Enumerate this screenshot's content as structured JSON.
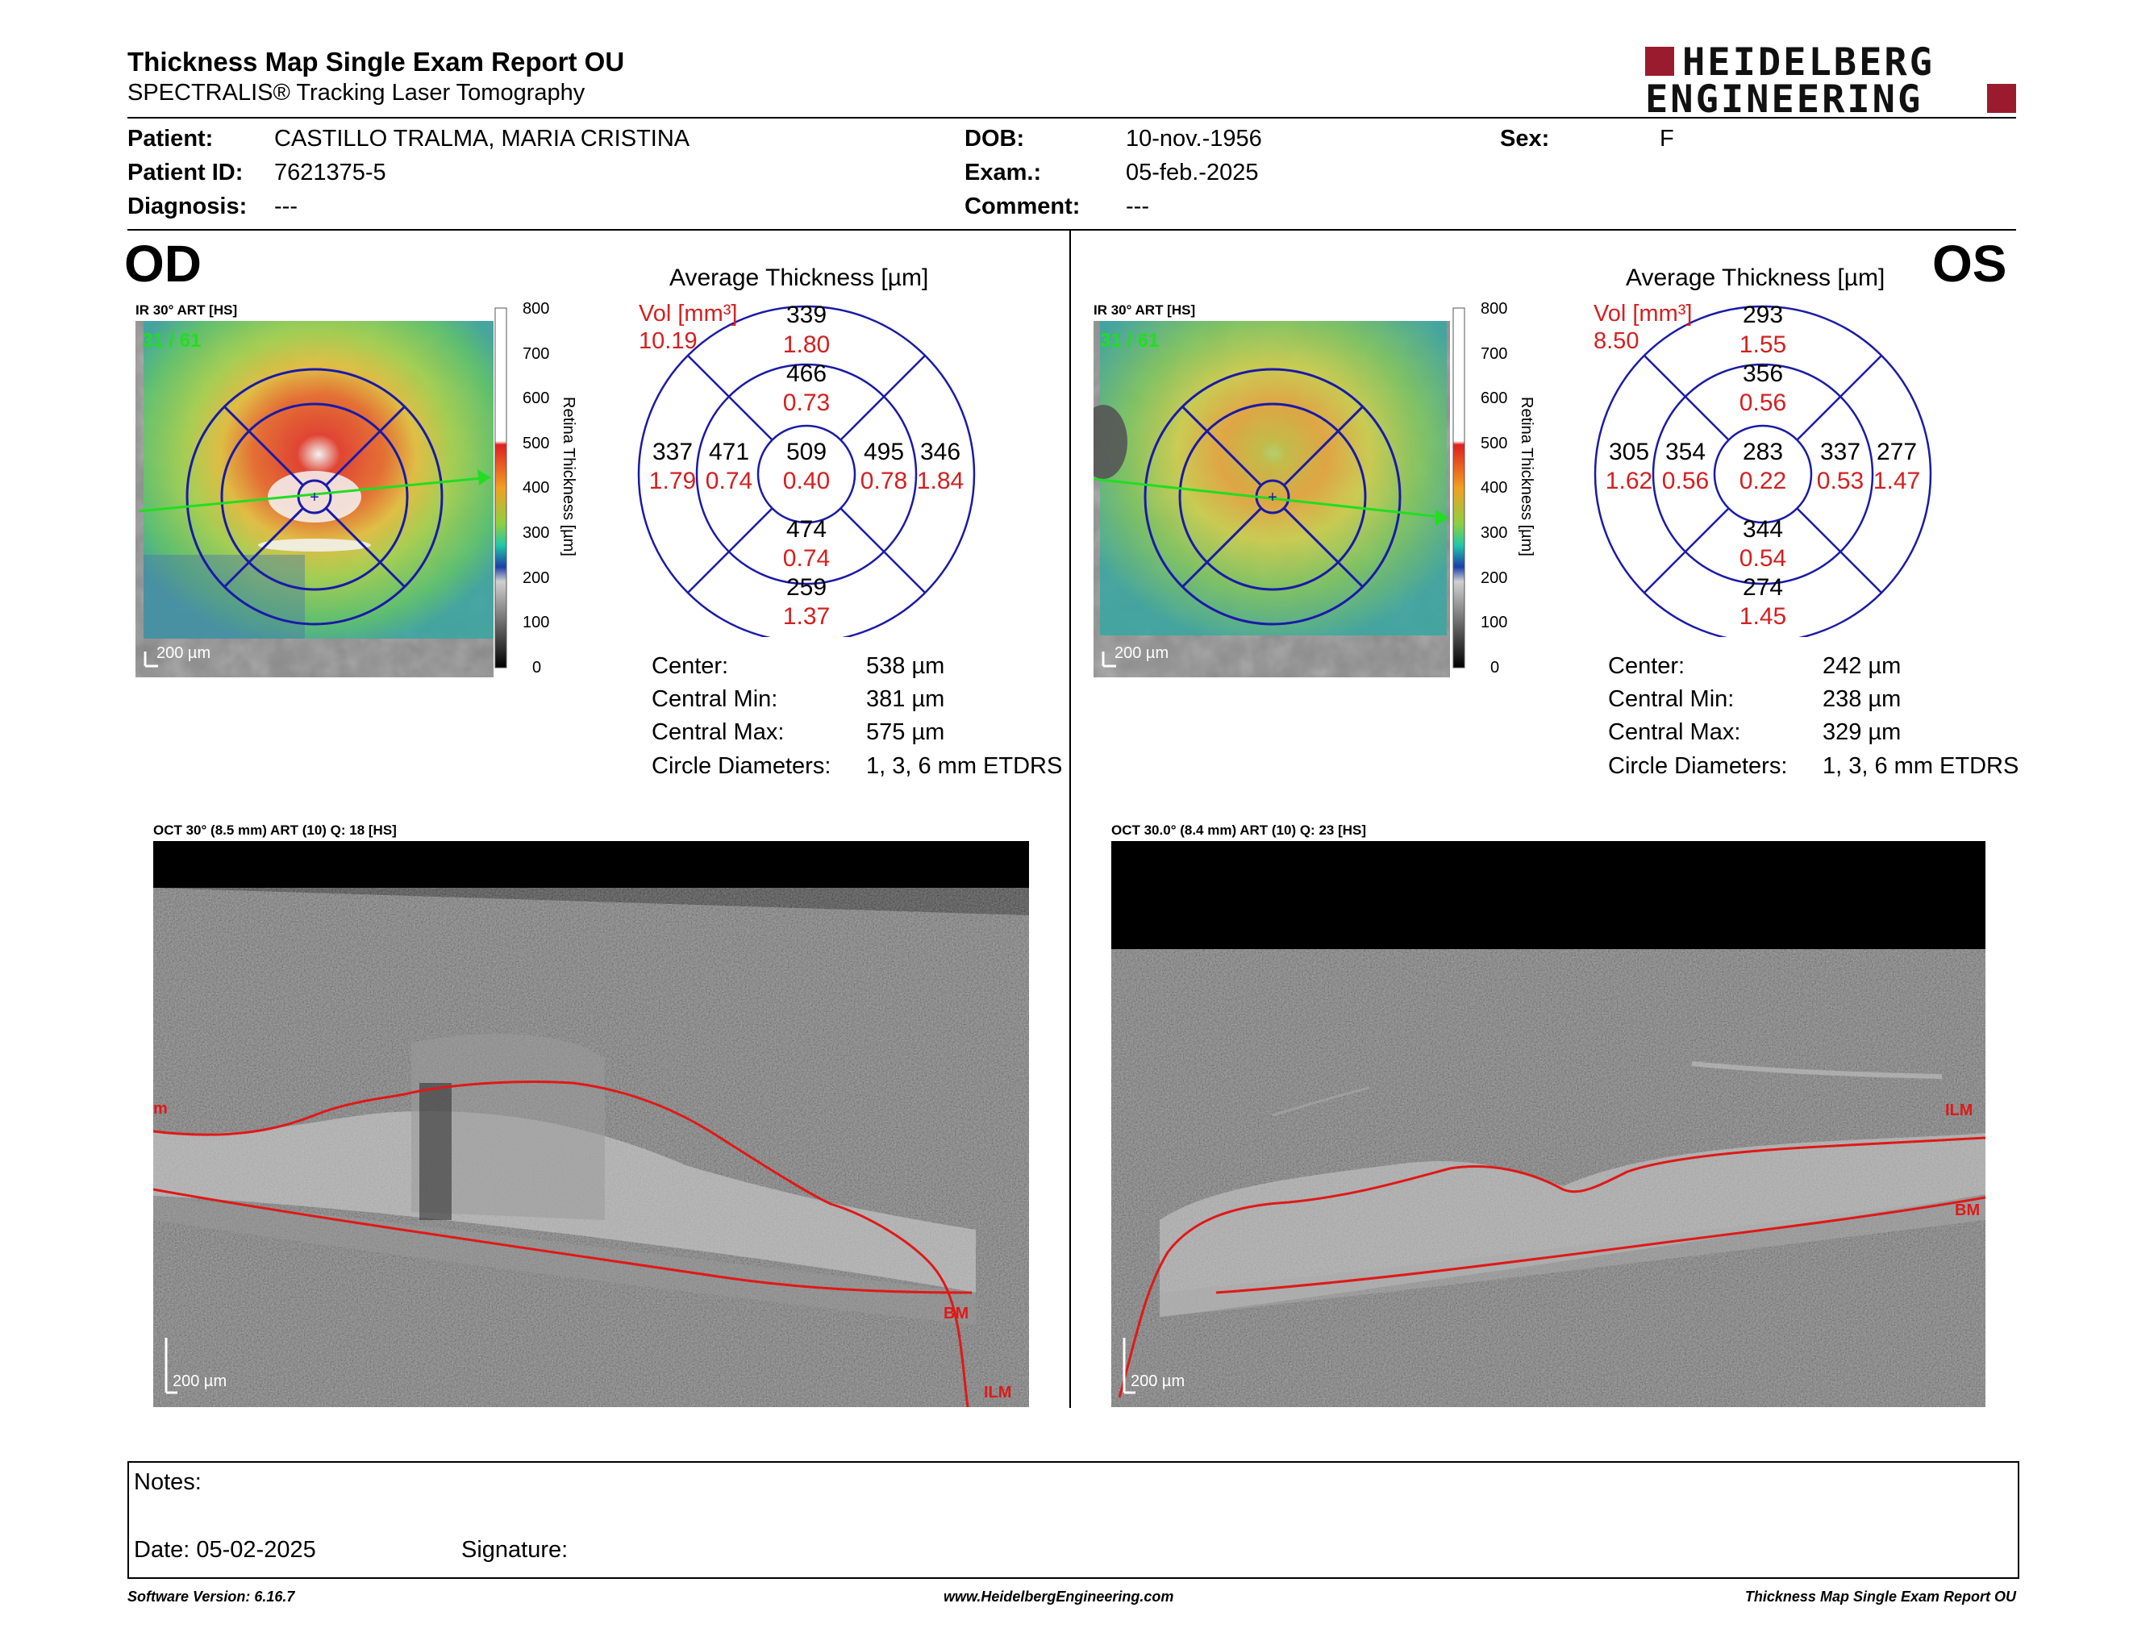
{
  "header": {
    "title": "Thickness Map Single Exam Report OU",
    "subtitle": "SPECTRALIS® Tracking Laser Tomography",
    "brand_line1": "HEIDELBERG",
    "brand_line2": "ENGINEERING",
    "brand_color": "#9b1b2e"
  },
  "patient": {
    "patient_label": "Patient:",
    "patient_value": "CASTILLO TRALMA, MARIA CRISTINA",
    "id_label": "Patient ID:",
    "id_value": "7621375-5",
    "diagnosis_label": "Diagnosis:",
    "diagnosis_value": "---",
    "dob_label": "DOB:",
    "dob_value": "10-nov.-1956",
    "exam_label": "Exam.:",
    "exam_value": "05-feb.-2025",
    "comment_label": "Comment:",
    "comment_value": "---",
    "sex_label": "Sex:",
    "sex_value": "F"
  },
  "colorbar": {
    "ticks": [
      "800",
      "700",
      "600",
      "500",
      "400",
      "300",
      "200",
      "100",
      "0"
    ],
    "label": "Retina  Thickness [µm]"
  },
  "od": {
    "eye": "OD",
    "ir_title": "IR 30° ART [HS]",
    "frame": "31 / 61",
    "scale": "200 µm",
    "avg_title": "Average Thickness [µm]",
    "vol_label": "Vol [mm³]",
    "vol_value": "10.19",
    "etdrs": {
      "center": {
        "t": "509",
        "v": "0.40"
      },
      "inner_superior": {
        "t": "466",
        "v": "0.73"
      },
      "inner_inferior": {
        "t": "474",
        "v": "0.74"
      },
      "inner_left": {
        "t": "471",
        "v": "0.74"
      },
      "inner_right": {
        "t": "495",
        "v": "0.78"
      },
      "outer_superior": {
        "t": "339",
        "v": "1.80"
      },
      "outer_inferior": {
        "t": "259",
        "v": "1.37"
      },
      "outer_left": {
        "t": "337",
        "v": "1.79"
      },
      "outer_right": {
        "t": "346",
        "v": "1.84"
      }
    },
    "stats": {
      "center_label": "Center:",
      "center_value": "538 µm",
      "cmin_label": "Central Min:",
      "cmin_value": "381 µm",
      "cmax_label": "Central Max:",
      "cmax_value": "575 µm",
      "circ_label": "Circle Diameters:",
      "circ_value": "1, 3, 6 mm ETDRS"
    },
    "oct_title": "OCT 30° (8.5 mm) ART (10) Q: 18 [HS]",
    "oct_scale": "200 µm",
    "ilm_label": "ILM",
    "ilm_label_left": "m",
    "bm_label": "BM"
  },
  "os": {
    "eye": "OS",
    "ir_title": "IR 30° ART [HS]",
    "frame": "31 / 61",
    "scale": "200 µm",
    "avg_title": "Average Thickness [µm]",
    "vol_label": "Vol [mm³]",
    "vol_value": "8.50",
    "etdrs": {
      "center": {
        "t": "283",
        "v": "0.22"
      },
      "inner_superior": {
        "t": "356",
        "v": "0.56"
      },
      "inner_inferior": {
        "t": "344",
        "v": "0.54"
      },
      "inner_left": {
        "t": "354",
        "v": "0.56"
      },
      "inner_right": {
        "t": "337",
        "v": "0.53"
      },
      "outer_superior": {
        "t": "293",
        "v": "1.55"
      },
      "outer_inferior": {
        "t": "274",
        "v": "1.45"
      },
      "outer_left": {
        "t": "305",
        "v": "1.62"
      },
      "outer_right": {
        "t": "277",
        "v": "1.47"
      }
    },
    "stats": {
      "center_label": "Center:",
      "center_value": "242 µm",
      "cmin_label": "Central Min:",
      "cmin_value": "238 µm",
      "cmax_label": "Central Max:",
      "cmax_value": "329 µm",
      "circ_label": "Circle Diameters:",
      "circ_value": "1, 3, 6 mm ETDRS"
    },
    "oct_title": "OCT 30.0° (8.4 mm) ART (10) Q: 23 [HS]",
    "oct_scale": "200 µm",
    "ilm_label": "ILM",
    "bm_label": "BM"
  },
  "notes": {
    "notes_label": "Notes:",
    "date_label": "Date: 05-02-2025",
    "signature_label": "Signature:"
  },
  "footer": {
    "software": "Software Version: 6.16.7",
    "website": "www.HeidelbergEngineering.com",
    "report": "Thickness Map Single Exam Report OU"
  },
  "colors": {
    "etdrs_ring": "#1a1aa8",
    "volume_red": "#d42020",
    "segmentation_red": "#e01818",
    "scan_green": "#22dd22"
  }
}
